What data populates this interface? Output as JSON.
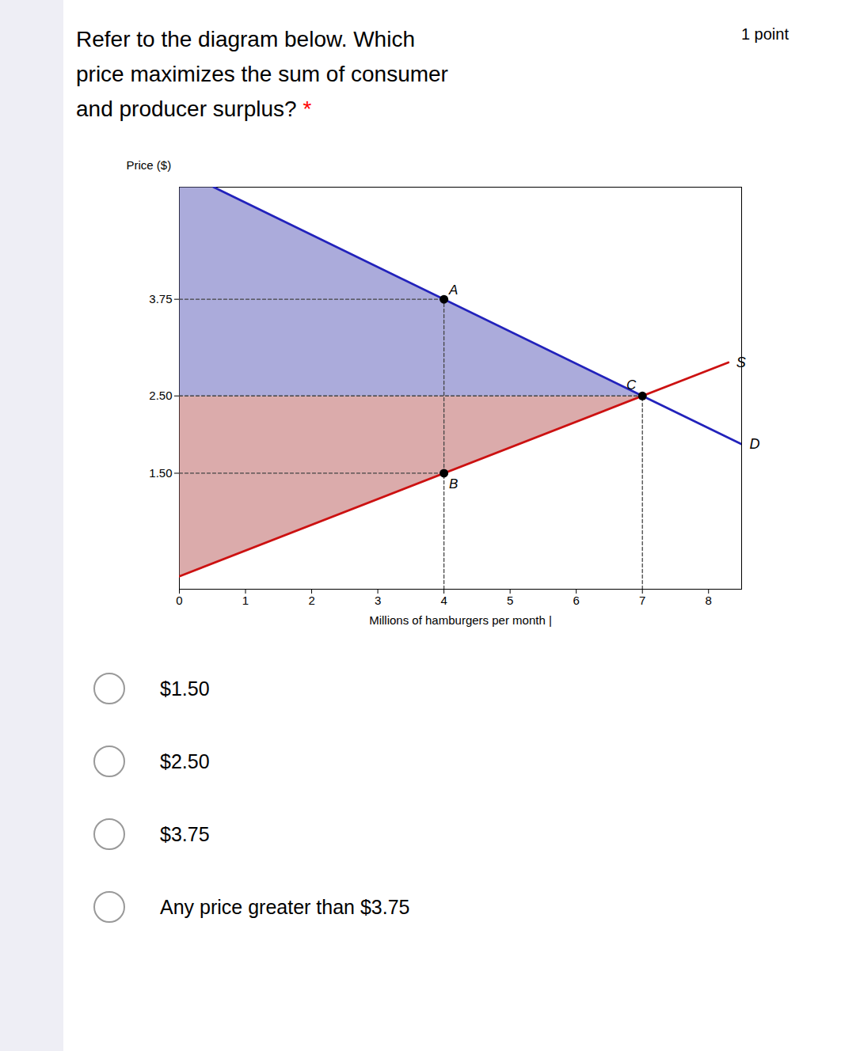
{
  "chart_data": {
    "type": "line",
    "title": "Refer to the diagram below. Which\nprice maximizes the sum of consumer\nand producer surplus?",
    "annotations": [
      {
        "text": "1 point"
      },
      {
        "text": "*",
        "color": "red"
      }
    ],
    "options": [
      "$1.50",
      "$2.50",
      "$3.75",
      "Any price greater than $3.75"
    ],
    "xlabel": "Millions of hamburgers per month |",
    "ylabel": "Price ($)",
    "xlim": [
      0,
      8.5
    ],
    "ylim": [
      0,
      5.2
    ],
    "xticks": [
      0,
      1,
      2,
      3,
      4,
      5,
      6,
      7,
      8
    ],
    "yticks": [
      {
        "value": 1.5,
        "label": "1.50"
      },
      {
        "value": 2.5,
        "label": "2.50"
      },
      {
        "value": 3.75,
        "label": "3.75"
      }
    ],
    "grid": false,
    "series": [
      {
        "type": "area",
        "color": "#8888cc",
        "x": [
          0.52,
          7,
          0,
          0
        ],
        "values": [
          5.2,
          2.5,
          2.5,
          5.2
        ]
      },
      {
        "type": "area",
        "color": "#cc8888",
        "x": [
          0,
          7,
          0
        ],
        "values": [
          0.16666666666666666,
          2.5,
          2.5
        ]
      },
      {
        "type": "line",
        "line_style": "dashed",
        "color": "#444444",
        "x": [
          0,
          4
        ],
        "values": [
          3.75,
          3.75
        ]
      },
      {
        "type": "line",
        "line_style": "dashed",
        "color": "#444444",
        "x": [
          4,
          4
        ],
        "values": [
          0,
          3.75
        ]
      },
      {
        "type": "line",
        "line_style": "dashed",
        "color": "#444444",
        "x": [
          0,
          4
        ],
        "values": [
          1.5,
          1.5
        ]
      },
      {
        "type": "line",
        "line_style": "dashed",
        "color": "#444444",
        "x": [
          0,
          7
        ],
        "values": [
          2.5,
          2.5
        ]
      },
      {
        "type": "line",
        "line_style": "dashed",
        "color": "#444444",
        "x": [
          7,
          7
        ],
        "values": [
          0,
          2.5
        ]
      },
      {
        "name": "S",
        "type": "line",
        "color": "#cc1111",
        "x": [
          0,
          8.3
        ],
        "values": [
          0.16666666666666666,
          2.9333333333333336
        ]
      },
      {
        "name": "D",
        "type": "line",
        "color": "#2222bb",
        "x": [
          0.52,
          8.5
        ],
        "values": [
          5.2,
          1.875
        ]
      },
      {
        "type": "scatter",
        "marker": "circle",
        "color": "black",
        "x": [
          4,
          4,
          7
        ],
        "values": [
          3.75,
          1.5,
          2.5
        ],
        "labels": [
          "A",
          "B",
          "C"
        ]
      }
    ]
  }
}
